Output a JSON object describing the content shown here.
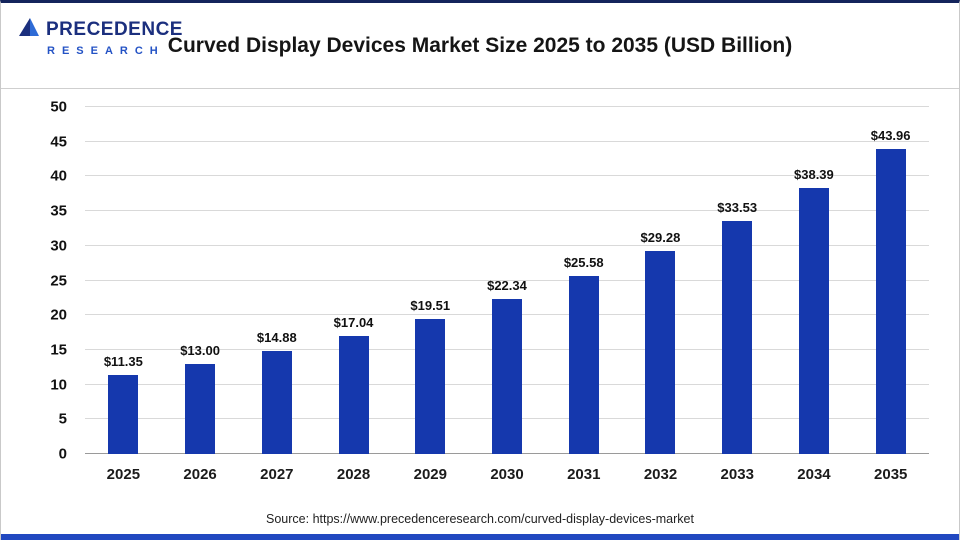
{
  "header": {
    "logo": {
      "line1": "PRECEDENCE",
      "line2": "RESEARCH"
    },
    "title": "Curved Display Devices Market Size 2025 to 2035 (USD Billion)"
  },
  "footer": {
    "source": "Source: https://www.precedenceresearch.com/curved-display-devices-market"
  },
  "colors": {
    "bar": "#1538ad",
    "accent_strip": "#2148c0",
    "logo_dark": "#1b2f7e",
    "logo_light": "#2453c5"
  },
  "chart_data": {
    "type": "bar",
    "title": "Curved Display Devices Market Size 2025 to 2035 (USD Billion)",
    "categories": [
      "2025",
      "2026",
      "2027",
      "2028",
      "2029",
      "2030",
      "2031",
      "2032",
      "2033",
      "2034",
      "2035"
    ],
    "values": [
      11.35,
      13.0,
      14.88,
      17.04,
      19.51,
      22.34,
      25.58,
      29.28,
      33.53,
      38.39,
      43.96
    ],
    "labels": [
      "$11.35",
      "$13.00",
      "$14.88",
      "$17.04",
      "$19.51",
      "$22.34",
      "$25.58",
      "$29.28",
      "$33.53",
      "$38.39",
      "$43.96"
    ],
    "xlabel": "",
    "ylabel": "",
    "ylim": [
      0,
      50
    ],
    "yticks": [
      0,
      5,
      10,
      15,
      20,
      25,
      30,
      35,
      40,
      45,
      50
    ],
    "grid": true,
    "legend": "none",
    "bar_color": "#1538ad"
  }
}
